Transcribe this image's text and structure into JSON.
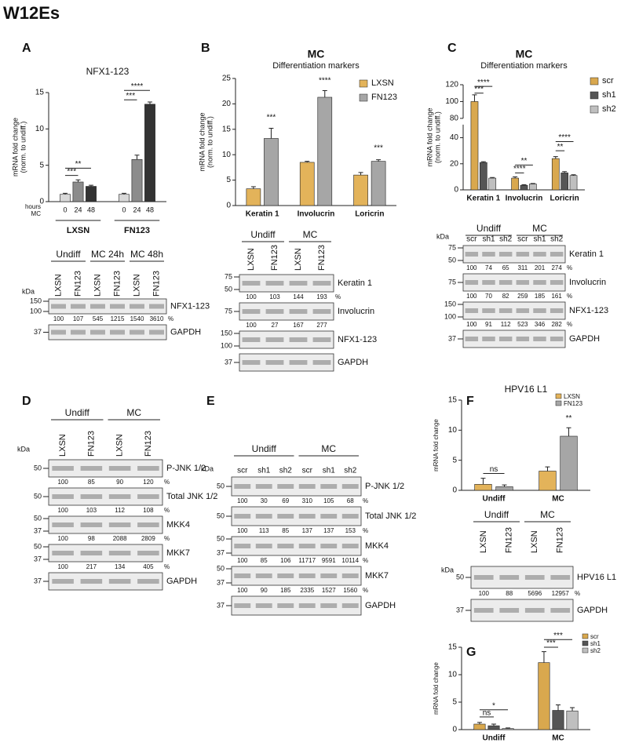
{
  "figure_title": "W12Es",
  "chart_data": [
    {
      "panel": "A",
      "type": "bar",
      "title": "NFX1-123",
      "ylabel": [
        "mRNA fold change",
        "(norm. to undiff.)"
      ],
      "categories": [
        "LXSN",
        "FN123"
      ],
      "x_row_labels": [
        "hours",
        "MC"
      ],
      "series": [
        {
          "name": "0",
          "color": "#d9d9d9",
          "values": [
            1.0,
            1.0
          ],
          "errors": [
            0.15,
            0.15
          ]
        },
        {
          "name": "24",
          "color": "#8c8c8c",
          "values": [
            2.7,
            5.8
          ],
          "errors": [
            0.3,
            0.6
          ]
        },
        {
          "name": "48",
          "color": "#333333",
          "values": [
            2.1,
            13.4
          ],
          "errors": [
            0.15,
            0.3
          ]
        }
      ],
      "ylim": [
        0,
        15
      ],
      "yticks": [
        0,
        5,
        10,
        15
      ],
      "legend": false,
      "annotations": [
        "**",
        "***",
        "****",
        "***"
      ]
    },
    {
      "panel": "B",
      "type": "bar",
      "title": "MC",
      "subtitle": "Differentiation markers",
      "ylabel": [
        "mRNA fold change",
        "(norm. to undiff.)"
      ],
      "categories": [
        "Keratin 1",
        "Involucrin",
        "Loricrin"
      ],
      "series": [
        {
          "name": "LXSN",
          "color": "#e3b35a",
          "values": [
            3.3,
            8.5,
            6.0
          ],
          "errors": [
            0.4,
            0.2,
            0.5
          ]
        },
        {
          "name": "FN123",
          "color": "#a6a6a6",
          "values": [
            13.2,
            21.3,
            8.7
          ],
          "errors": [
            2.0,
            1.3,
            0.3
          ]
        }
      ],
      "ylim": [
        0,
        25
      ],
      "yticks": [
        0,
        5,
        10,
        15,
        20,
        25
      ],
      "legend": "upper right",
      "annotations": [
        "***",
        "****",
        "***"
      ]
    },
    {
      "panel": "C",
      "type": "bar",
      "title": "MC",
      "subtitle": "Differentiation markers",
      "ylabel": [
        "mRNA fold change",
        "(norm. to undiff.)"
      ],
      "categories": [
        "Keratin 1",
        "Involucrin",
        "Loricrin"
      ],
      "series": [
        {
          "name": "scr",
          "color": "#d9a84e",
          "values": [
            100,
            9,
            24
          ],
          "errors": [
            8,
            1,
            1.5
          ]
        },
        {
          "name": "sh1",
          "color": "#555555",
          "values": [
            21,
            3.5,
            13
          ],
          "errors": [
            0.6,
            0.5,
            1
          ]
        },
        {
          "name": "sh2",
          "color": "#bfbfbf",
          "values": [
            9,
            4.5,
            11
          ],
          "errors": [
            0.5,
            0.4,
            0.6
          ]
        }
      ],
      "ylim": [
        0,
        120
      ],
      "ybreak": [
        50,
        80
      ],
      "yticks": [
        0,
        20,
        40,
        80,
        100,
        120
      ],
      "legend": "right",
      "annotations": [
        "****",
        "***",
        "**",
        "****",
        "****",
        "**"
      ]
    },
    {
      "panel": "F",
      "type": "bar",
      "title": "HPV16 L1",
      "ylabel": [
        "mRNA fold change"
      ],
      "categories": [
        "Undiff",
        "MC"
      ],
      "series": [
        {
          "name": "LXSN",
          "color": "#e3b35a",
          "values": [
            1.0,
            3.2
          ],
          "errors": [
            1.0,
            0.7
          ]
        },
        {
          "name": "FN123",
          "color": "#a6a6a6",
          "values": [
            0.6,
            9.0
          ],
          "errors": [
            0.3,
            1.4
          ]
        }
      ],
      "ylim": [
        0,
        15
      ],
      "yticks": [
        0,
        5,
        10,
        15
      ],
      "legend": "upper right",
      "annotations": [
        "ns",
        "**"
      ]
    },
    {
      "panel": "G",
      "type": "bar",
      "ylabel": [
        "mRNA fold change"
      ],
      "categories": [
        "Undiff",
        "MC"
      ],
      "series": [
        {
          "name": "scr",
          "color": "#d9a84e",
          "values": [
            1.0,
            12.2
          ],
          "errors": [
            0.3,
            2.0
          ]
        },
        {
          "name": "sh1",
          "color": "#555555",
          "values": [
            0.7,
            3.5
          ],
          "errors": [
            0.3,
            1.0
          ]
        },
        {
          "name": "sh2",
          "color": "#bfbfbf",
          "values": [
            0.2,
            3.4
          ],
          "errors": [
            0.1,
            0.6
          ]
        }
      ],
      "ylim": [
        0,
        15
      ],
      "yticks": [
        0,
        5,
        10,
        15
      ],
      "legend": "upper right",
      "annotations": [
        "*",
        "ns",
        "***",
        "***"
      ]
    }
  ],
  "blots": [
    {
      "kda": "kDa",
      "groups": [
        "Undiff",
        "MC 24h",
        "MC 48h"
      ],
      "lanes": [
        "LXSN",
        "FN123",
        "LXSN",
        "FN123",
        "LXSN",
        "FN123"
      ],
      "rows": [
        {
          "label": "NFX1-123",
          "markers": [
            150,
            100
          ],
          "quant": [
            100,
            107,
            545,
            1215,
            1540,
            3610
          ],
          "unit": "%"
        },
        {
          "label": "GAPDH",
          "markers": [
            37
          ]
        }
      ]
    },
    {
      "groups": [
        "Undiff",
        "MC"
      ],
      "lanes": [
        "LXSN",
        "FN123",
        "LXSN",
        "FN123"
      ],
      "rows": [
        {
          "label": "Keratin 1",
          "markers": [
            75,
            50
          ],
          "quant": [
            100,
            103,
            144,
            193
          ],
          "unit": "%"
        },
        {
          "label": "Involucrin",
          "markers": [
            75
          ],
          "quant": [
            100,
            27,
            167,
            277
          ]
        },
        {
          "label": "NFX1-123",
          "markers": [
            150,
            100
          ]
        },
        {
          "label": "GAPDH",
          "markers": [
            37
          ]
        }
      ]
    },
    {
      "kda": "kDa",
      "groups": [
        "Undiff",
        "MC"
      ],
      "lanes": [
        "scr",
        "sh1",
        "sh2",
        "scr",
        "sh1",
        "sh2"
      ],
      "rows": [
        {
          "label": "Keratin 1",
          "markers": [
            75,
            50
          ],
          "quant": [
            100,
            74,
            65,
            311,
            201,
            274
          ],
          "unit": "%"
        },
        {
          "label": "Involucrin",
          "markers": [
            75
          ],
          "quant": [
            100,
            70,
            82,
            259,
            185,
            161
          ],
          "unit": "%"
        },
        {
          "label": "NFX1-123",
          "markers": [
            150,
            100
          ],
          "quant": [
            100,
            91,
            112,
            523,
            346,
            282
          ],
          "unit": "%"
        },
        {
          "label": "GAPDH",
          "markers": [
            37
          ]
        }
      ]
    },
    {
      "panel": "D",
      "kda": "kDa",
      "groups": [
        "Undiff",
        "MC"
      ],
      "lanes": [
        "LXSN",
        "FN123",
        "LXSN",
        "FN123"
      ],
      "rows": [
        {
          "label": "P-JNK 1/2",
          "markers": [
            50
          ],
          "quant": [
            100,
            85,
            90,
            120
          ],
          "unit": "%"
        },
        {
          "label": "Total JNK 1/2",
          "markers": [
            50
          ],
          "quant": [
            100,
            103,
            112,
            108
          ],
          "unit": "%"
        },
        {
          "label": "MKK4",
          "markers": [
            50,
            37
          ],
          "quant": [
            100,
            98,
            2088,
            2809
          ],
          "unit": "%"
        },
        {
          "label": "MKK7",
          "markers": [
            50,
            37
          ],
          "quant": [
            100,
            217,
            134,
            405
          ],
          "unit": "%"
        },
        {
          "label": "GAPDH",
          "markers": [
            37
          ]
        }
      ]
    },
    {
      "panel": "E",
      "kda": "kDa",
      "groups": [
        "Undiff",
        "MC"
      ],
      "lanes": [
        "scr",
        "sh1",
        "sh2",
        "scr",
        "sh1",
        "sh2"
      ],
      "rows": [
        {
          "label": "P-JNK 1/2",
          "markers": [
            50
          ],
          "quant": [
            100,
            30,
            69,
            310,
            105,
            68
          ],
          "unit": "%"
        },
        {
          "label": "Total JNK 1/2",
          "markers": [
            50
          ],
          "quant": [
            100,
            113,
            85,
            137,
            137,
            153
          ],
          "unit": "%"
        },
        {
          "label": "MKK4",
          "markers": [
            50,
            37
          ],
          "quant": [
            100,
            85,
            106,
            11717,
            9591,
            10114
          ],
          "unit": "%"
        },
        {
          "label": "MKK7",
          "markers": [
            50,
            37
          ],
          "quant": [
            100,
            90,
            185,
            2335,
            1527,
            1560
          ],
          "unit": "%"
        },
        {
          "label": "GAPDH",
          "markers": [
            37
          ]
        }
      ]
    },
    {
      "kda": "kDa",
      "groups": [
        "Undiff",
        "MC"
      ],
      "lanes": [
        "LXSN",
        "FN123",
        "LXSN",
        "FN123"
      ],
      "rows": [
        {
          "label": "HPV16 L1",
          "markers": [
            50
          ],
          "quant": [
            100,
            88,
            5696,
            12957
          ],
          "unit": "%"
        },
        {
          "label": "GAPDH",
          "markers": [
            37
          ]
        }
      ]
    }
  ]
}
